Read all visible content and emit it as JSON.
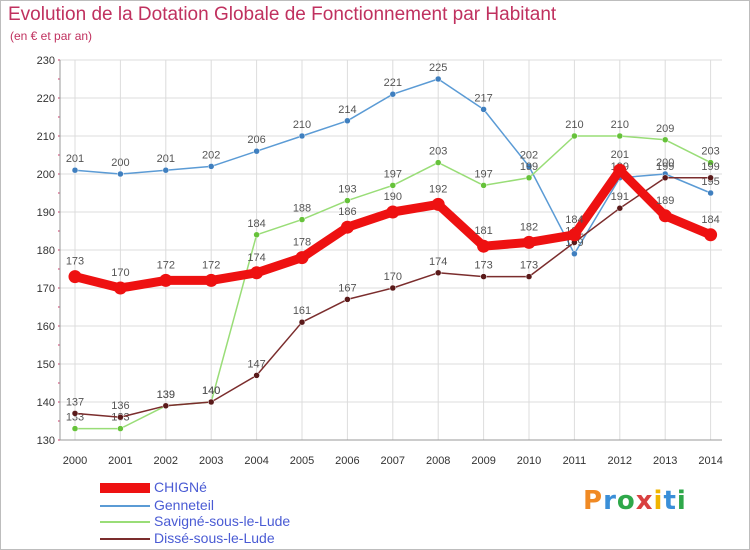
{
  "header": {
    "title": "Evolution de la Dotation Globale de Fonctionnement par Habitant",
    "subtitle": "(en € et par an)"
  },
  "logo": {
    "text": "Proxiti",
    "colors": [
      "#f08a24",
      "#3a8fd8",
      "#2ea84a",
      "#d94040",
      "#f0b400",
      "#3a8fd8",
      "#2ea84a"
    ]
  },
  "chart_data": {
    "type": "line",
    "title": "Evolution de la Dotation Globale de Fonctionnement par Habitant",
    "subtitle": "(en € et par an)",
    "xlabel": "",
    "ylabel": "",
    "ylim": [
      130,
      230
    ],
    "yticks": [
      130,
      140,
      150,
      160,
      170,
      180,
      190,
      200,
      210,
      220,
      230
    ],
    "grid": true,
    "legend_position": "bottom-left",
    "categories": [
      "2000",
      "2001",
      "2002",
      "2003",
      "2004",
      "2005",
      "2006",
      "2007",
      "2008",
      "2009",
      "2010",
      "2011",
      "2012",
      "2013",
      "2014"
    ],
    "series": [
      {
        "name": "Genneteil",
        "color": "#5b9bd5",
        "point_color": "#3f7fbf",
        "values": [
          201,
          200,
          201,
          202,
          206,
          210,
          214,
          221,
          225,
          217,
          202,
          179,
          199,
          200,
          195
        ]
      },
      {
        "name": "Savigné-sous-le-Lude",
        "color": "#99dd77",
        "point_color": "#66c23a",
        "values": [
          133,
          133,
          139,
          140,
          184,
          188,
          193,
          197,
          203,
          197,
          199,
          210,
          210,
          209,
          203
        ]
      },
      {
        "name": "Dissé-sous-le-Lude",
        "color": "#7b2d2d",
        "point_color": "#5a1a1a",
        "values": [
          137,
          136,
          139,
          140,
          147,
          161,
          167,
          170,
          174,
          173,
          173,
          182,
          191,
          199,
          199
        ]
      },
      {
        "name": "CHIGNé",
        "color": "#ee1111",
        "point_color": "#ee1111",
        "bold": true,
        "values": [
          173,
          170,
          172,
          172,
          174,
          178,
          186,
          190,
          192,
          181,
          182,
          184,
          201,
          189,
          184
        ]
      }
    ],
    "legend": [
      {
        "name": "CHIGNé",
        "color": "#ee1111",
        "bold": true
      },
      {
        "name": "Genneteil",
        "color": "#5b9bd5"
      },
      {
        "name": "Savigné-sous-le-Lude",
        "color": "#99dd77"
      },
      {
        "name": "Dissé-sous-le-Lude",
        "color": "#7b2d2d"
      }
    ]
  }
}
